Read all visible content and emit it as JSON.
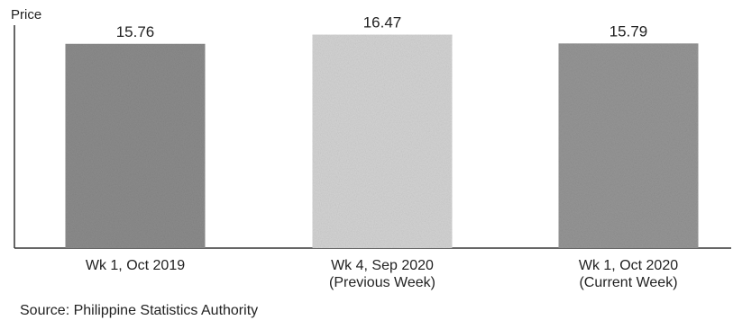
{
  "chart_data": {
    "type": "bar",
    "ylabel": "Price",
    "categories": [
      [
        "Wk 1, Oct 2019"
      ],
      [
        "Wk 4, Sep 2020",
        "(Previous Week)"
      ],
      [
        "Wk 1, Oct 2020",
        "(Current Week)"
      ]
    ],
    "values": [
      15.76,
      16.47,
      15.79
    ],
    "value_labels": [
      "15.76",
      "16.47",
      "15.79"
    ],
    "bar_colors": [
      "#8c8c8c",
      "#d4d4d4",
      "#969696"
    ],
    "ylim": [
      0,
      17.2
    ],
    "grid": false,
    "legend": "none"
  },
  "source": "Source: Philippine Statistics Authority"
}
